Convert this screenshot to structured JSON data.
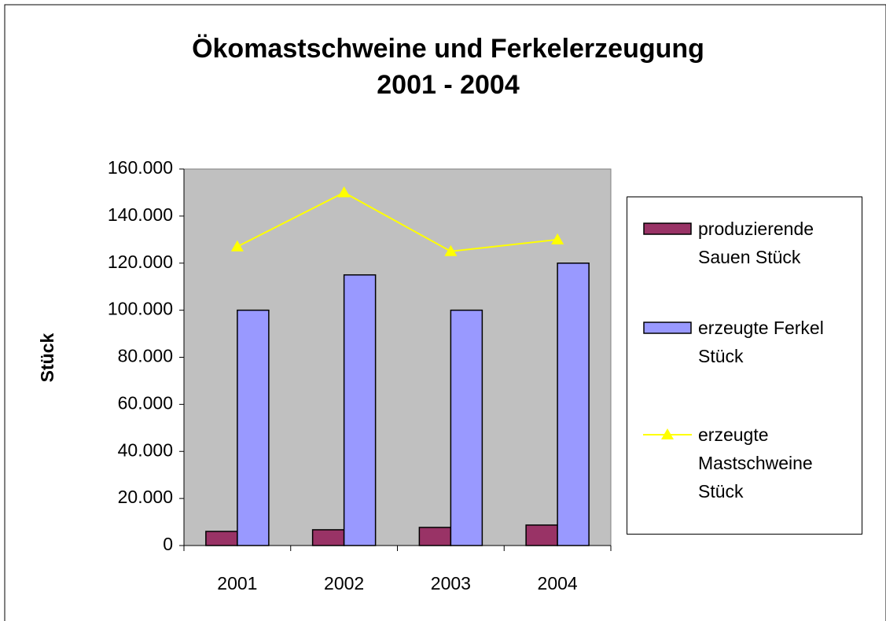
{
  "chart_data": {
    "type": "bar-line",
    "title": [
      "Ökomastschweine und Ferkelerzeugung",
      "2001 - 2004"
    ],
    "y_label": "Stück",
    "categories": [
      "2001",
      "2002",
      "2003",
      "2004"
    ],
    "series": [
      {
        "name": "produzierende Sauen Stück",
        "type": "bar",
        "color": "#993366",
        "values": [
          6000,
          6700,
          7700,
          8700
        ]
      },
      {
        "name": "erzeugte Ferkel Stück",
        "type": "bar",
        "color": "#9999ff",
        "values": [
          100000,
          115000,
          100000,
          120000
        ]
      },
      {
        "name": "erzeugte Mastschweine Stück",
        "type": "line",
        "color": "#ffff00",
        "values": [
          127000,
          150000,
          125000,
          130000
        ]
      }
    ],
    "ylim": [
      0,
      160000
    ],
    "yticks": [
      0,
      {
        "value": 20000,
        "label": "20.000"
      },
      {
        "value": 40000,
        "label": "40.000"
      },
      {
        "value": 60000,
        "label": "60.000"
      },
      {
        "value": 80000,
        "label": "80.000"
      },
      {
        "value": 100000,
        "label": "100.000"
      },
      {
        "value": 120000,
        "label": "120.000"
      },
      {
        "value": 140000,
        "label": "140.000"
      },
      {
        "value": 160000,
        "label": "160.000"
      }
    ],
    "legend": "right"
  }
}
